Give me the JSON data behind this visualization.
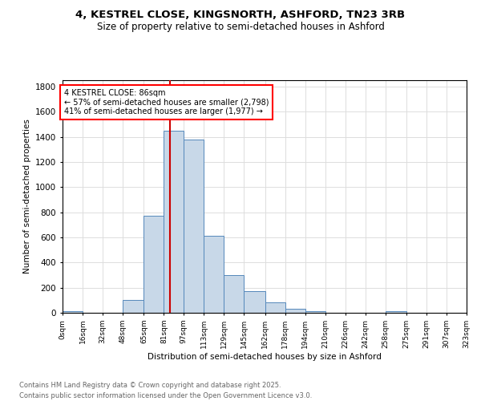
{
  "title": "4, KESTREL CLOSE, KINGSNORTH, ASHFORD, TN23 3RB",
  "subtitle": "Size of property relative to semi-detached houses in Ashford",
  "xlabel": "Distribution of semi-detached houses by size in Ashford",
  "ylabel": "Number of semi-detached properties",
  "annotation_title": "4 KESTREL CLOSE: 86sqm",
  "annotation_line1": "← 57% of semi-detached houses are smaller (2,798)",
  "annotation_line2": "41% of semi-detached houses are larger (1,977) →",
  "vline_x": 86,
  "bar_edges": [
    0,
    16,
    32,
    48,
    65,
    81,
    97,
    113,
    129,
    145,
    162,
    178,
    194,
    210,
    226,
    242,
    258,
    275,
    291,
    307,
    323
  ],
  "bar_heights": [
    15,
    0,
    0,
    100,
    770,
    1450,
    1380,
    610,
    300,
    170,
    85,
    30,
    15,
    0,
    0,
    0,
    15,
    0,
    0,
    0
  ],
  "bar_color": "#c8d8e8",
  "bar_edge_color": "#5588bb",
  "vline_color": "#cc0000",
  "grid_color": "#dddddd",
  "background_color": "#ffffff",
  "tick_labels": [
    "0sqm",
    "16sqm",
    "32sqm",
    "48sqm",
    "65sqm",
    "81sqm",
    "97sqm",
    "113sqm",
    "129sqm",
    "145sqm",
    "162sqm",
    "178sqm",
    "194sqm",
    "210sqm",
    "226sqm",
    "242sqm",
    "258sqm",
    "275sqm",
    "291sqm",
    "307sqm",
    "323sqm"
  ],
  "ylim": [
    0,
    1850
  ],
  "yticks": [
    0,
    200,
    400,
    600,
    800,
    1000,
    1200,
    1400,
    1600,
    1800
  ],
  "footnote1": "Contains HM Land Registry data © Crown copyright and database right 2025.",
  "footnote2": "Contains public sector information licensed under the Open Government Licence v3.0."
}
